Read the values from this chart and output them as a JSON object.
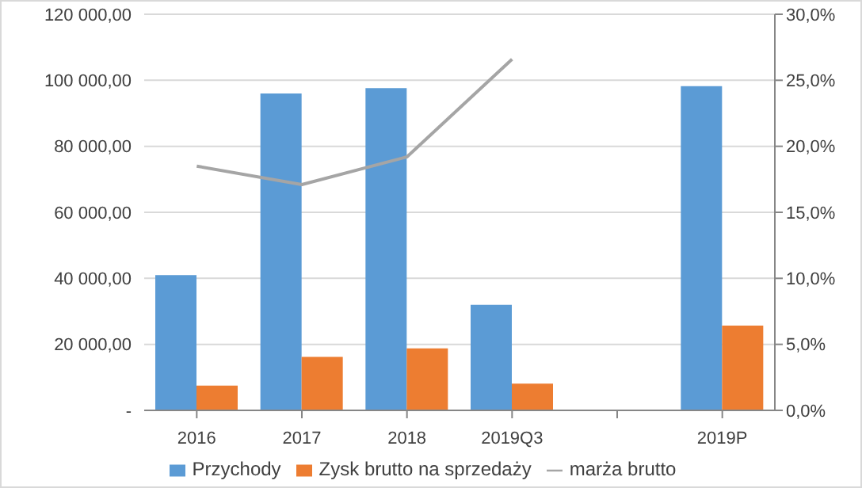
{
  "chart_data": {
    "type": "bar",
    "categories": [
      "2016",
      "2017",
      "2018",
      "2019Q3",
      null,
      "2019P"
    ],
    "series": [
      {
        "name": "Przychody",
        "color": "#5b9bd5",
        "values": [
          41000,
          96000,
          97600,
          32000,
          null,
          98200
        ]
      },
      {
        "name": "Zysk brutto na sprzedaży",
        "color": "#ed7d31",
        "values": [
          7500,
          16200,
          18800,
          8100,
          null,
          25700
        ]
      },
      {
        "name": "marża brutto",
        "type": "line",
        "axis": "y2",
        "color": "#a5a5a5",
        "values": [
          18.5,
          17.1,
          19.2,
          26.6,
          null,
          null
        ]
      }
    ],
    "ylim": [
      0,
      120000
    ],
    "yticks": [
      {
        "value": 0,
        "label": "-"
      },
      {
        "value": 20000,
        "label": "20 000,00"
      },
      {
        "value": 40000,
        "label": "40 000,00"
      },
      {
        "value": 60000,
        "label": "60 000,00"
      },
      {
        "value": 80000,
        "label": "80 000,00"
      },
      {
        "value": 100000,
        "label": "100 000,00"
      },
      {
        "value": 120000,
        "label": "120 000,00"
      }
    ],
    "y2lim": [
      0,
      30
    ],
    "y2ticks": [
      {
        "value": 0,
        "label": "0,0%"
      },
      {
        "value": 5,
        "label": "5,0%"
      },
      {
        "value": 10,
        "label": "10,0%"
      },
      {
        "value": 15,
        "label": "15,0%"
      },
      {
        "value": 20,
        "label": "20,0%"
      },
      {
        "value": 25,
        "label": "25,0%"
      },
      {
        "value": 30,
        "label": "30,0%"
      }
    ],
    "grid": "y",
    "legend": "bottom",
    "marker": "none"
  }
}
